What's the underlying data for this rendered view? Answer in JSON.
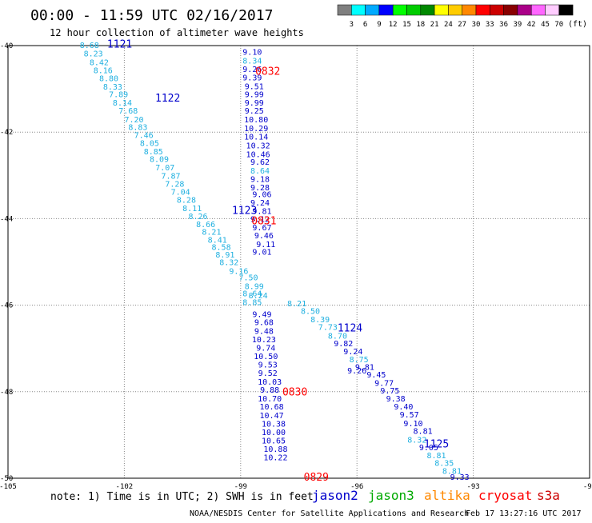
{
  "header": {
    "title": "00:00 - 11:59 UTC 02/16/2017",
    "subtitle": "12 hour collection of altimeter wave heights"
  },
  "legend": {
    "bins": [
      {
        "label": "3",
        "color": "#7f7f7f"
      },
      {
        "label": "6",
        "color": "#00ffff"
      },
      {
        "label": "9",
        "color": "#00aaff"
      },
      {
        "label": "12",
        "color": "#0000ff"
      },
      {
        "label": "15",
        "color": "#00ff00"
      },
      {
        "label": "18",
        "color": "#00cc00"
      },
      {
        "label": "21",
        "color": "#008800"
      },
      {
        "label": "24",
        "color": "#ffff00"
      },
      {
        "label": "27",
        "color": "#ffcc00"
      },
      {
        "label": "30",
        "color": "#ff8800"
      },
      {
        "label": "33",
        "color": "#ff0000"
      },
      {
        "label": "36",
        "color": "#cc0000"
      },
      {
        "label": "39",
        "color": "#880000"
      },
      {
        "label": "42",
        "color": "#aa0088"
      },
      {
        "label": "45",
        "color": "#ff66ff"
      },
      {
        "label": "70",
        "color": "#ffccff"
      },
      {
        "label": "",
        "color": "#000000"
      }
    ],
    "unit": "(ft)"
  },
  "footer": {
    "note": "note: 1) Time is in UTC; 2) SWH is in feet",
    "credit": "NOAA/NESDIS Center for Satellite Applications and Research",
    "timestamp": "Feb 17 13:27:16 UTC 2017"
  },
  "satellites": [
    {
      "name": "jason2",
      "color": "#0000cc"
    },
    {
      "name": "jason3",
      "color": "#00aa00"
    },
    {
      "name": "altika",
      "color": "#ff8800"
    },
    {
      "name": "cryosat",
      "color": "#ff0000"
    },
    {
      "name": "s3a",
      "color": "#cc0000"
    }
  ],
  "chart_data": {
    "type": "scatter",
    "xlim": [
      -105,
      -90
    ],
    "ylim": [
      -50,
      -40
    ],
    "x_ticks": [
      -105,
      -102,
      -99,
      -96,
      -93,
      -90
    ],
    "x_tick_labels": [
      "-105",
      "-102",
      "-99",
      "-96",
      "-93",
      "-90"
    ],
    "y_ticks": [
      -40,
      -42,
      -44,
      -46,
      -48,
      -50
    ],
    "y_tick_labels": [
      "-40",
      "-42",
      "-44",
      "-46",
      "-48",
      "-50"
    ],
    "grid": true,
    "colors": {
      "light": "#20b0e0",
      "dark": "#0000cc",
      "red": "#ff0000"
    },
    "time_labels": [
      {
        "text": "1121",
        "lon": -102.12,
        "lat": -39.95,
        "color": "dark"
      },
      {
        "text": "1122",
        "lon": -100.88,
        "lat": -41.2,
        "color": "dark"
      },
      {
        "text": "1123",
        "lon": -98.9,
        "lat": -43.8,
        "color": "dark"
      },
      {
        "text": "1124",
        "lon": -96.18,
        "lat": -46.52,
        "color": "dark"
      },
      {
        "text": "1125",
        "lon": -93.95,
        "lat": -49.2,
        "color": "dark"
      },
      {
        "text": "0832",
        "lon": -98.3,
        "lat": -40.58,
        "color": "red"
      },
      {
        "text": "0831",
        "lon": -98.4,
        "lat": -44.04,
        "color": "red"
      },
      {
        "text": "0830",
        "lon": -97.6,
        "lat": -47.99,
        "color": "red"
      },
      {
        "text": "0829",
        "lon": -97.05,
        "lat": -49.96,
        "color": "red"
      }
    ],
    "tracks": [
      {
        "points": [
          {
            "lon": -102.9,
            "lat": -39.98,
            "swh": "8.68",
            "c": "light"
          },
          {
            "lon": -102.8,
            "lat": -40.18,
            "swh": "8.23",
            "c": "light"
          },
          {
            "lon": -102.65,
            "lat": -40.38,
            "swh": "8.42",
            "c": "light"
          },
          {
            "lon": -102.55,
            "lat": -40.56,
            "swh": "8.16",
            "c": "light"
          },
          {
            "lon": -102.4,
            "lat": -40.75,
            "swh": "8.80",
            "c": "light"
          },
          {
            "lon": -102.3,
            "lat": -40.94,
            "swh": "8.33",
            "c": "light"
          },
          {
            "lon": -102.15,
            "lat": -41.12,
            "swh": "7.89",
            "c": "light"
          },
          {
            "lon": -102.05,
            "lat": -41.31,
            "swh": "8.14",
            "c": "light"
          },
          {
            "lon": -101.9,
            "lat": -41.5,
            "swh": "7.68",
            "c": "light"
          },
          {
            "lon": -101.75,
            "lat": -41.7,
            "swh": "7.20",
            "c": "light"
          },
          {
            "lon": -101.65,
            "lat": -41.88,
            "swh": "8.83",
            "c": "light"
          },
          {
            "lon": -101.5,
            "lat": -42.06,
            "swh": "7.46",
            "c": "light"
          },
          {
            "lon": -101.35,
            "lat": -42.25,
            "swh": "8.05",
            "c": "light"
          },
          {
            "lon": -101.25,
            "lat": -42.44,
            "swh": "8.85",
            "c": "light"
          },
          {
            "lon": -101.1,
            "lat": -42.62,
            "swh": "8.09",
            "c": "light"
          },
          {
            "lon": -100.95,
            "lat": -42.81,
            "swh": "7.07",
            "c": "light"
          },
          {
            "lon": -100.8,
            "lat": -43.0,
            "swh": "7.87",
            "c": "light"
          },
          {
            "lon": -100.7,
            "lat": -43.19,
            "swh": "7.28",
            "c": "light"
          },
          {
            "lon": -100.55,
            "lat": -43.37,
            "swh": "7.04",
            "c": "light"
          },
          {
            "lon": -100.4,
            "lat": -43.56,
            "swh": "8.28",
            "c": "light"
          },
          {
            "lon": -100.25,
            "lat": -43.75,
            "swh": "8.11",
            "c": "light"
          },
          {
            "lon": -100.1,
            "lat": -43.94,
            "swh": "8.26",
            "c": "light"
          },
          {
            "lon": -99.9,
            "lat": -44.12,
            "swh": "8.66",
            "c": "light"
          },
          {
            "lon": -99.75,
            "lat": -44.3,
            "swh": "8.21",
            "c": "light"
          },
          {
            "lon": -99.6,
            "lat": -44.48,
            "swh": "8.41",
            "c": "light"
          },
          {
            "lon": -99.5,
            "lat": -44.65,
            "swh": "8.58",
            "c": "light"
          },
          {
            "lon": -99.4,
            "lat": -44.82,
            "swh": "8.91",
            "c": "light"
          },
          {
            "lon": -99.3,
            "lat": -45.0,
            "swh": "8.32",
            "c": "light"
          },
          {
            "lon": -99.05,
            "lat": -45.2,
            "swh": "9.16",
            "c": "light"
          },
          {
            "lon": -98.8,
            "lat": -45.35,
            "swh": "7.50",
            "c": "light"
          },
          {
            "lon": -98.65,
            "lat": -45.55,
            "swh": "8.99",
            "c": "light"
          },
          {
            "lon": -98.55,
            "lat": -45.77,
            "swh": "8.24",
            "c": "light"
          },
          {
            "lon": -98.7,
            "lat": -45.72,
            "swh": "8.64",
            "c": "light"
          },
          {
            "lon": -98.7,
            "lat": -45.92,
            "swh": "8.85",
            "c": "light"
          },
          {
            "lon": -97.55,
            "lat": -45.95,
            "swh": "8.21",
            "c": "light"
          },
          {
            "lon": -97.2,
            "lat": -46.13,
            "swh": "8.50",
            "c": "light"
          },
          {
            "lon": -96.95,
            "lat": -46.32,
            "swh": "8.39",
            "c": "light"
          },
          {
            "lon": -96.75,
            "lat": -46.5,
            "swh": "7.73",
            "c": "light"
          },
          {
            "lon": -96.5,
            "lat": -46.7,
            "swh": "8.70",
            "c": "light"
          },
          {
            "lon": -95.95,
            "lat": -47.25,
            "swh": "8.75",
            "c": "light"
          },
          {
            "lon": -94.45,
            "lat": -49.1,
            "swh": "8.32",
            "c": "light"
          },
          {
            "lon": -93.95,
            "lat": -49.46,
            "swh": "8.81",
            "c": "light"
          },
          {
            "lon": -93.75,
            "lat": -49.64,
            "swh": "8.35",
            "c": "light"
          },
          {
            "lon": -93.55,
            "lat": -49.82,
            "swh": "8.81",
            "c": "light"
          },
          {
            "lon": -96.35,
            "lat": -46.88,
            "swh": "9.82",
            "c": "dark"
          },
          {
            "lon": -96.1,
            "lat": -47.06,
            "swh": "9.24",
            "c": "dark"
          },
          {
            "lon": -95.8,
            "lat": -47.42,
            "swh": "9.81",
            "c": "dark"
          },
          {
            "lon": -96.0,
            "lat": -47.5,
            "swh": "9.26",
            "c": "dark"
          },
          {
            "lon": -95.5,
            "lat": -47.6,
            "swh": "9.45",
            "c": "dark"
          },
          {
            "lon": -95.3,
            "lat": -47.79,
            "swh": "9.77",
            "c": "dark"
          },
          {
            "lon": -95.15,
            "lat": -47.97,
            "swh": "9.75",
            "c": "dark"
          },
          {
            "lon": -95.0,
            "lat": -48.15,
            "swh": "9.38",
            "c": "dark"
          },
          {
            "lon": -94.8,
            "lat": -48.34,
            "swh": "9.40",
            "c": "dark"
          },
          {
            "lon": -94.65,
            "lat": -48.52,
            "swh": "9.57",
            "c": "dark"
          },
          {
            "lon": -94.55,
            "lat": -48.72,
            "swh": "9.10",
            "c": "dark"
          },
          {
            "lon": -94.3,
            "lat": -48.9,
            "swh": "8.81",
            "c": "dark"
          },
          {
            "lon": -94.15,
            "lat": -49.28,
            "swh": "9.05",
            "c": "dark"
          },
          {
            "lon": -93.35,
            "lat": -49.96,
            "swh": "9.33",
            "c": "dark"
          }
        ]
      },
      {
        "points": [
          {
            "lon": -98.7,
            "lat": -40.14,
            "swh": "9.10",
            "c": "dark"
          },
          {
            "lon": -98.7,
            "lat": -40.34,
            "swh": "8.34",
            "c": "light"
          },
          {
            "lon": -98.7,
            "lat": -40.54,
            "swh": "9.26",
            "c": "dark"
          },
          {
            "lon": -98.7,
            "lat": -40.73,
            "swh": "9.39",
            "c": "dark"
          },
          {
            "lon": -98.65,
            "lat": -40.93,
            "swh": "9.51",
            "c": "dark"
          },
          {
            "lon": -98.65,
            "lat": -41.12,
            "swh": "9.99",
            "c": "dark"
          },
          {
            "lon": -98.65,
            "lat": -41.31,
            "swh": "9.99",
            "c": "dark"
          },
          {
            "lon": -98.65,
            "lat": -41.5,
            "swh": "9.25",
            "c": "dark"
          },
          {
            "lon": -98.6,
            "lat": -41.7,
            "swh": "10.80",
            "c": "dark"
          },
          {
            "lon": -98.6,
            "lat": -41.9,
            "swh": "10.29",
            "c": "dark"
          },
          {
            "lon": -98.6,
            "lat": -42.1,
            "swh": "10.14",
            "c": "dark"
          },
          {
            "lon": -98.55,
            "lat": -42.3,
            "swh": "10.32",
            "c": "dark"
          },
          {
            "lon": -98.55,
            "lat": -42.5,
            "swh": "10.46",
            "c": "dark"
          },
          {
            "lon": -98.5,
            "lat": -42.68,
            "swh": "9.62",
            "c": "dark"
          },
          {
            "lon": -98.5,
            "lat": -42.88,
            "swh": "8.64",
            "c": "light"
          },
          {
            "lon": -98.5,
            "lat": -43.08,
            "swh": "9.18",
            "c": "dark"
          },
          {
            "lon": -98.5,
            "lat": -43.27,
            "swh": "9.28",
            "c": "dark"
          },
          {
            "lon": -98.45,
            "lat": -43.43,
            "swh": "9.06",
            "c": "dark"
          },
          {
            "lon": -98.5,
            "lat": -43.62,
            "swh": "9.24",
            "c": "dark"
          },
          {
            "lon": -98.45,
            "lat": -43.82,
            "swh": "9.81",
            "c": "dark"
          },
          {
            "lon": -98.5,
            "lat": -44.0,
            "swh": "9.12",
            "c": "dark"
          },
          {
            "lon": -98.45,
            "lat": -44.2,
            "swh": "9.67",
            "c": "dark"
          },
          {
            "lon": -98.4,
            "lat": -44.38,
            "swh": "9.46",
            "c": "dark"
          },
          {
            "lon": -98.35,
            "lat": -44.58,
            "swh": "9.11",
            "c": "dark"
          },
          {
            "lon": -98.45,
            "lat": -44.76,
            "swh": "9.01",
            "c": "dark"
          },
          {
            "lon": -98.45,
            "lat": -46.2,
            "swh": "9.49",
            "c": "dark"
          },
          {
            "lon": -98.4,
            "lat": -46.39,
            "swh": "9.68",
            "c": "dark"
          },
          {
            "lon": -98.4,
            "lat": -46.59,
            "swh": "9.48",
            "c": "dark"
          },
          {
            "lon": -98.4,
            "lat": -46.78,
            "swh": "10.23",
            "c": "dark"
          },
          {
            "lon": -98.35,
            "lat": -46.98,
            "swh": "9.74",
            "c": "dark"
          },
          {
            "lon": -98.35,
            "lat": -47.17,
            "swh": "10.50",
            "c": "dark"
          },
          {
            "lon": -98.3,
            "lat": -47.37,
            "swh": "9.53",
            "c": "dark"
          },
          {
            "lon": -98.3,
            "lat": -47.56,
            "swh": "9.52",
            "c": "dark"
          },
          {
            "lon": -98.25,
            "lat": -47.76,
            "swh": "10.03",
            "c": "dark"
          },
          {
            "lon": -98.25,
            "lat": -47.95,
            "swh": "9.88",
            "c": "dark"
          },
          {
            "lon": -98.25,
            "lat": -48.15,
            "swh": "10.70",
            "c": "dark"
          },
          {
            "lon": -98.2,
            "lat": -48.34,
            "swh": "10.68",
            "c": "dark"
          },
          {
            "lon": -98.2,
            "lat": -48.54,
            "swh": "10.47",
            "c": "dark"
          },
          {
            "lon": -98.15,
            "lat": -48.73,
            "swh": "10.38",
            "c": "dark"
          },
          {
            "lon": -98.15,
            "lat": -48.93,
            "swh": "10.00",
            "c": "dark"
          },
          {
            "lon": -98.15,
            "lat": -49.12,
            "swh": "10.65",
            "c": "dark"
          },
          {
            "lon": -98.1,
            "lat": -49.32,
            "swh": "10.88",
            "c": "dark"
          },
          {
            "lon": -98.1,
            "lat": -49.51,
            "swh": "10.22",
            "c": "dark"
          }
        ]
      }
    ]
  }
}
